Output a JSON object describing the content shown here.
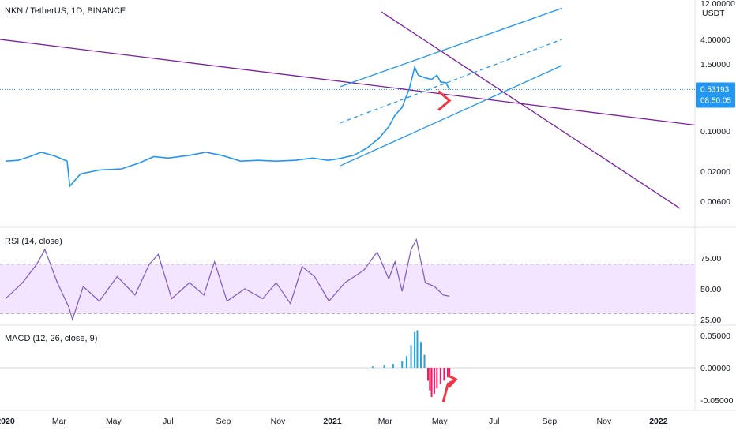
{
  "colors": {
    "price_line": "#2196f3",
    "channel": "#2196f3",
    "trendline": "#7b1fa2",
    "rsi_line": "#7e57c2",
    "rsi_band": "#f3e5ff",
    "macd_up": "#26a3d9",
    "macd_down": "#e91e63",
    "annotation": "#f23645",
    "price_badge": "#2196f3"
  },
  "icons": {
    "arrow_main": "red-right-chevron",
    "arrow_macd": "red-zigzag-arrow"
  },
  "chart_data": [
    {
      "type": "line",
      "title": "NKN / TetherUS, 1D, BINANCE",
      "y_scale": "log",
      "y_unit": "USDT",
      "y_ticks": [
        {
          "value": 4.0,
          "label": "4.00000"
        },
        {
          "value": 1.5,
          "label": "1.50000"
        },
        {
          "value": 0.1,
          "label": "0.10000"
        },
        {
          "value": 0.02,
          "label": "0.02000"
        },
        {
          "value": 0.006,
          "label": "0.00600"
        }
      ],
      "y_top_label": "12.00000",
      "last_price": "0.53193",
      "countdown": "08:50:05",
      "series": [
        {
          "points": [
            [
              "2020-01-01",
              0.03
            ],
            [
              "2020-01-15",
              0.031
            ],
            [
              "2020-01-28",
              0.036
            ],
            [
              "2020-02-10",
              0.043
            ],
            [
              "2020-02-25",
              0.037
            ],
            [
              "2020-03-10",
              0.03
            ],
            [
              "2020-03-13",
              0.011
            ],
            [
              "2020-03-25",
              0.018
            ],
            [
              "2020-04-15",
              0.021
            ],
            [
              "2020-05-10",
              0.022
            ],
            [
              "2020-05-30",
              0.028
            ],
            [
              "2020-06-15",
              0.036
            ],
            [
              "2020-07-01",
              0.034
            ],
            [
              "2020-07-25",
              0.038
            ],
            [
              "2020-08-12",
              0.043
            ],
            [
              "2020-08-30",
              0.038
            ],
            [
              "2020-09-20",
              0.03
            ],
            [
              "2020-10-10",
              0.031
            ],
            [
              "2020-10-30",
              0.03
            ],
            [
              "2020-11-20",
              0.031
            ],
            [
              "2020-12-10",
              0.034
            ],
            [
              "2020-12-27",
              0.031
            ],
            [
              "2021-01-08",
              0.033
            ],
            [
              "2021-01-25",
              0.038
            ],
            [
              "2021-02-08",
              0.05
            ],
            [
              "2021-02-22",
              0.075
            ],
            [
              "2021-03-05",
              0.12
            ],
            [
              "2021-03-12",
              0.19
            ],
            [
              "2021-03-20",
              0.26
            ],
            [
              "2021-03-28",
              0.55
            ],
            [
              "2021-04-03",
              1.3
            ],
            [
              "2021-04-07",
              0.95
            ],
            [
              "2021-04-15",
              0.85
            ],
            [
              "2021-04-22",
              0.8
            ],
            [
              "2021-04-28",
              0.95
            ],
            [
              "2021-05-02",
              0.72
            ],
            [
              "2021-05-08",
              0.7
            ],
            [
              "2021-05-12",
              0.53193
            ]
          ]
        }
      ],
      "drawings": [
        {
          "kind": "trendline",
          "from": [
            "2019-12-25",
            4.0
          ],
          "to": [
            "2022-02-25",
            0.12
          ]
        },
        {
          "kind": "trendline",
          "from": [
            "2021-02-25",
            12.0
          ],
          "to": [
            "2022-01-25",
            0.0045
          ]
        },
        {
          "kind": "channel-upper",
          "from": [
            "2021-01-10",
            0.6
          ],
          "to": [
            "2021-09-15",
            14.0
          ]
        },
        {
          "kind": "channel-mid",
          "from": [
            "2021-01-10",
            0.14
          ],
          "to": [
            "2021-09-15",
            4.0
          ]
        },
        {
          "kind": "channel-lower",
          "from": [
            "2021-01-10",
            0.025
          ],
          "to": [
            "2021-09-15",
            1.4
          ]
        }
      ]
    },
    {
      "type": "line",
      "title": "RSI (14, close)",
      "ylim": [
        25,
        90
      ],
      "y_ticks": [
        {
          "value": 75,
          "label": "75.00"
        },
        {
          "value": 50,
          "label": "50.00"
        },
        {
          "value": 25,
          "label": "25.00"
        }
      ],
      "bands": {
        "upper": 70,
        "lower": 30
      },
      "series": [
        {
          "points": [
            [
              "2020-01-01",
              42
            ],
            [
              "2020-01-20",
              55
            ],
            [
              "2020-02-05",
              70
            ],
            [
              "2020-02-14",
              82
            ],
            [
              "2020-02-28",
              55
            ],
            [
              "2020-03-12",
              35
            ],
            [
              "2020-03-16",
              25
            ],
            [
              "2020-03-28",
              52
            ],
            [
              "2020-04-15",
              40
            ],
            [
              "2020-05-05",
              60
            ],
            [
              "2020-05-25",
              45
            ],
            [
              "2020-06-10",
              70
            ],
            [
              "2020-06-20",
              78
            ],
            [
              "2020-07-05",
              42
            ],
            [
              "2020-07-25",
              55
            ],
            [
              "2020-08-10",
              45
            ],
            [
              "2020-08-22",
              72
            ],
            [
              "2020-09-05",
              40
            ],
            [
              "2020-09-25",
              50
            ],
            [
              "2020-10-15",
              42
            ],
            [
              "2020-10-30",
              55
            ],
            [
              "2020-11-15",
              38
            ],
            [
              "2020-11-28",
              68
            ],
            [
              "2020-12-12",
              60
            ],
            [
              "2020-12-28",
              40
            ],
            [
              "2021-01-15",
              55
            ],
            [
              "2021-02-05",
              65
            ],
            [
              "2021-02-20",
              80
            ],
            [
              "2021-03-05",
              58
            ],
            [
              "2021-03-12",
              72
            ],
            [
              "2021-03-20",
              48
            ],
            [
              "2021-03-30",
              82
            ],
            [
              "2021-04-05",
              90
            ],
            [
              "2021-04-15",
              55
            ],
            [
              "2021-04-25",
              52
            ],
            [
              "2021-05-05",
              45
            ],
            [
              "2021-05-12",
              44
            ]
          ]
        }
      ]
    },
    {
      "type": "bar",
      "title": "MACD (12, 26, close, 9)",
      "ylim": [
        -0.06,
        0.06
      ],
      "y_ticks": [
        {
          "value": 0.05,
          "label": "0.05000"
        },
        {
          "value": 0.0,
          "label": "0.00000"
        },
        {
          "value": -0.05,
          "label": "-0.05000"
        }
      ],
      "histogram": [
        [
          "2021-02-15",
          0.002
        ],
        [
          "2021-02-28",
          0.004
        ],
        [
          "2021-03-10",
          0.006
        ],
        [
          "2021-03-20",
          0.01
        ],
        [
          "2021-03-25",
          0.018
        ],
        [
          "2021-03-30",
          0.035
        ],
        [
          "2021-04-03",
          0.055
        ],
        [
          "2021-04-06",
          0.058
        ],
        [
          "2021-04-10",
          0.04
        ],
        [
          "2021-04-14",
          0.02
        ],
        [
          "2021-04-18",
          -0.02
        ],
        [
          "2021-04-20",
          -0.035
        ],
        [
          "2021-04-22",
          -0.045
        ],
        [
          "2021-04-25",
          -0.04
        ],
        [
          "2021-04-28",
          -0.032
        ],
        [
          "2021-05-02",
          -0.025
        ],
        [
          "2021-05-06",
          -0.02
        ],
        [
          "2021-05-10",
          -0.015
        ],
        [
          "2021-05-12",
          -0.012
        ]
      ]
    }
  ],
  "x_axis": {
    "ticks": [
      {
        "date": "2020-01-01",
        "label": "2020"
      },
      {
        "date": "2020-03-01",
        "label": "Mar"
      },
      {
        "date": "2020-05-01",
        "label": "May"
      },
      {
        "date": "2020-07-01",
        "label": "Jul"
      },
      {
        "date": "2020-09-01",
        "label": "Sep"
      },
      {
        "date": "2020-11-01",
        "label": "Nov"
      },
      {
        "date": "2021-01-01",
        "label": "2021"
      },
      {
        "date": "2021-03-01",
        "label": "Mar"
      },
      {
        "date": "2021-05-01",
        "label": "May"
      },
      {
        "date": "2021-07-01",
        "label": "Jul"
      },
      {
        "date": "2021-09-01",
        "label": "Sep"
      },
      {
        "date": "2021-11-01",
        "label": "Nov"
      },
      {
        "date": "2022-01-01",
        "label": "2022"
      }
    ]
  }
}
